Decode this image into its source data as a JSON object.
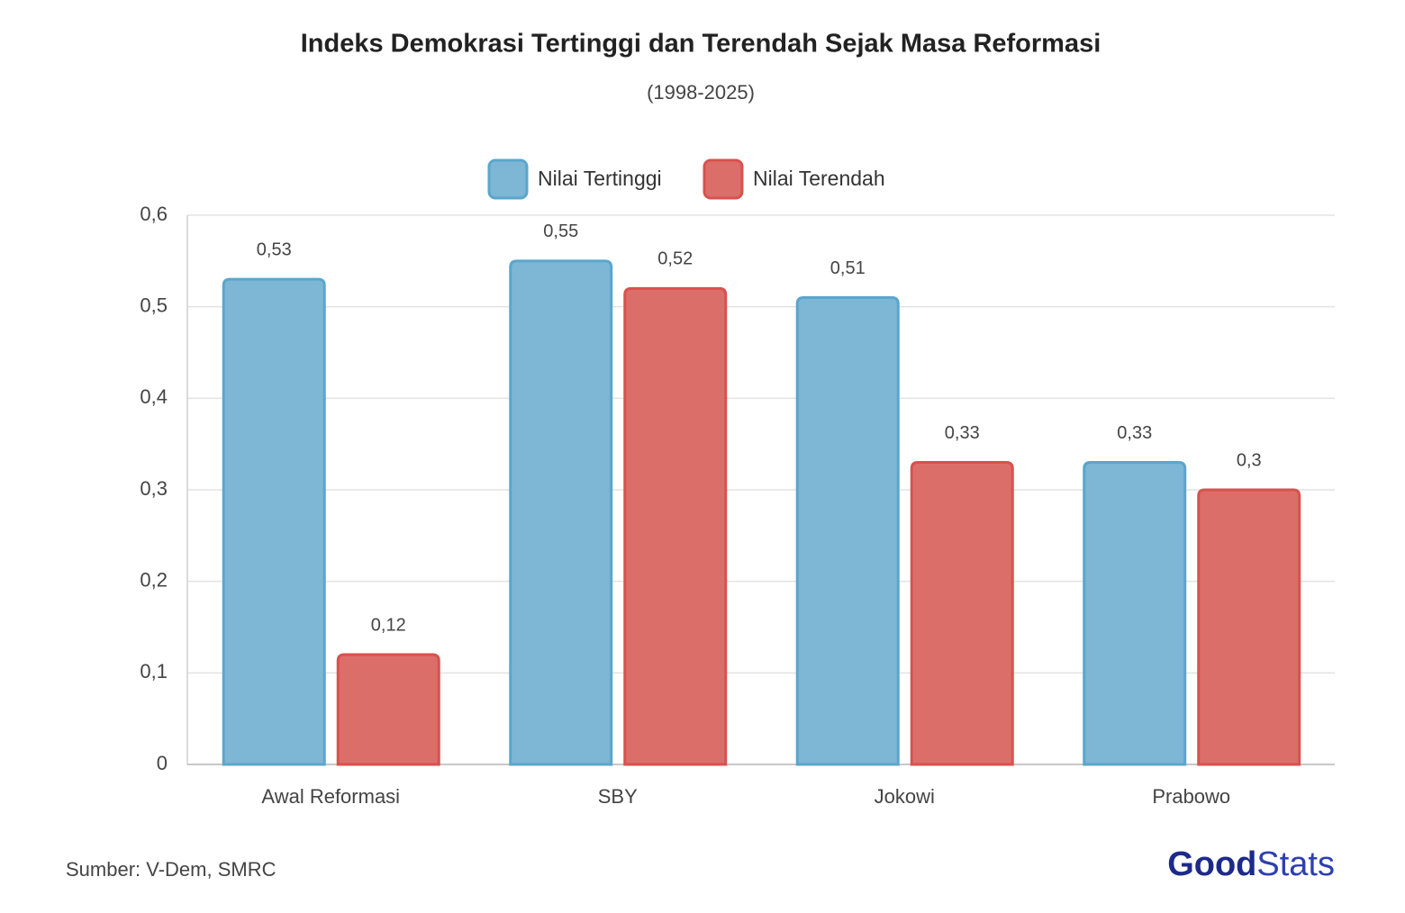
{
  "chart_data": {
    "type": "bar",
    "title": "Indeks Demokrasi Tertinggi dan Terendah Sejak Masa Reformasi",
    "subtitle": "(1998-2025)",
    "categories": [
      "Awal Reformasi",
      "SBY",
      "Jokowi",
      "Prabowo"
    ],
    "series": [
      {
        "name": "Nilai Tertinggi",
        "color": "#7eb6d6",
        "values": [
          0.53,
          0.55,
          0.51,
          0.33
        ],
        "value_labels": [
          "0,53",
          "0,55",
          "0,51",
          "0,33"
        ]
      },
      {
        "name": "Nilai Terendah",
        "color": "#dc6e6a",
        "values": [
          0.12,
          0.52,
          0.33,
          0.3
        ],
        "value_labels": [
          "0,12",
          "0,52",
          "0,33",
          "0,3"
        ]
      }
    ],
    "ylim": [
      0,
      0.6
    ],
    "yticks": [
      0,
      {
        "value": 0.1,
        "label": "0,1"
      },
      {
        "value": 0.2,
        "label": "0,2"
      },
      {
        "value": 0.3,
        "label": "0,3"
      },
      {
        "value": 0.4,
        "label": "0,4"
      },
      {
        "value": 0.5,
        "label": "0,5"
      },
      {
        "value": 0.6,
        "label": "0,6"
      }
    ],
    "grid": true,
    "legend": "top",
    "source": "Sumber: V-Dem, SMRC",
    "logo": [
      "Good",
      "Stats"
    ]
  }
}
